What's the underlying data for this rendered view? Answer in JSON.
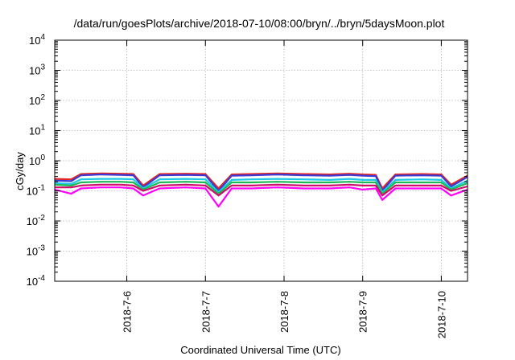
{
  "chart_data": {
    "type": "line",
    "title": "/data/run/goesPlots/archive/2018-07-10/08:00/bryn/../bryn/5daysMoon.plot",
    "xlabel": "Coordinated Universal Time (UTC)",
    "ylabel": "cGy/day",
    "yscale": "log",
    "ylim": [
      0.0001,
      10000
    ],
    "xlim": [
      "2018-07-05 02:00",
      "2018-07-10 08:00"
    ],
    "grid": true,
    "legend": "none",
    "y_ticks": [
      {
        "value": 0.0001,
        "mantissa": "10",
        "exp": "-4"
      },
      {
        "value": 0.001,
        "mantissa": "10",
        "exp": "-3"
      },
      {
        "value": 0.01,
        "mantissa": "10",
        "exp": "-2"
      },
      {
        "value": 0.1,
        "mantissa": "10",
        "exp": "-1"
      },
      {
        "value": 1,
        "mantissa": "10",
        "exp": "0"
      },
      {
        "value": 10,
        "mantissa": "10",
        "exp": "1"
      },
      {
        "value": 100,
        "mantissa": "10",
        "exp": "2"
      },
      {
        "value": 1000,
        "mantissa": "10",
        "exp": "3"
      },
      {
        "value": 10000,
        "mantissa": "10",
        "exp": "4"
      }
    ],
    "x_ticks": [
      {
        "value": "2018-07-06",
        "label": "2018-7-6"
      },
      {
        "value": "2018-07-07",
        "label": "2018-7-7"
      },
      {
        "value": "2018-07-08",
        "label": "2018-7-8"
      },
      {
        "value": "2018-07-09",
        "label": "2018-7-9"
      },
      {
        "value": "2018-07-10",
        "label": "2018-7-10"
      }
    ],
    "x": [
      "2018-07-05 02:00",
      "2018-07-05 07:00",
      "2018-07-05 10:00",
      "2018-07-05 16:00",
      "2018-07-05 22:00",
      "2018-07-06 02:00",
      "2018-07-06 05:00",
      "2018-07-06 10:00",
      "2018-07-06 18:00",
      "2018-07-07 00:00",
      "2018-07-07 04:00",
      "2018-07-07 08:00",
      "2018-07-07 14:00",
      "2018-07-07 22:00",
      "2018-07-08 06:00",
      "2018-07-08 14:00",
      "2018-07-08 20:00",
      "2018-07-09 00:00",
      "2018-07-09 04:00",
      "2018-07-09 06:00",
      "2018-07-09 10:00",
      "2018-07-09 18:00",
      "2018-07-10 00:00",
      "2018-07-10 03:00",
      "2018-07-10 08:00"
    ],
    "series": [
      {
        "color": "#e8231f",
        "values": [
          0.25,
          0.24,
          0.36,
          0.38,
          0.37,
          0.36,
          0.15,
          0.36,
          0.37,
          0.36,
          0.12,
          0.35,
          0.36,
          0.38,
          0.36,
          0.35,
          0.37,
          0.35,
          0.34,
          0.12,
          0.35,
          0.36,
          0.35,
          0.16,
          0.32
        ]
      },
      {
        "color": "#3a3ad6",
        "values": [
          0.22,
          0.21,
          0.33,
          0.35,
          0.34,
          0.33,
          0.13,
          0.33,
          0.34,
          0.33,
          0.1,
          0.32,
          0.33,
          0.35,
          0.33,
          0.32,
          0.34,
          0.32,
          0.31,
          0.1,
          0.32,
          0.33,
          0.32,
          0.14,
          0.29
        ]
      },
      {
        "color": "#1ec8e6",
        "values": [
          0.18,
          0.17,
          0.24,
          0.25,
          0.25,
          0.24,
          0.12,
          0.24,
          0.25,
          0.24,
          0.09,
          0.23,
          0.24,
          0.25,
          0.24,
          0.23,
          0.25,
          0.23,
          0.23,
          0.09,
          0.23,
          0.24,
          0.23,
          0.12,
          0.22
        ]
      },
      {
        "color": "#1db954",
        "values": [
          0.16,
          0.15,
          0.19,
          0.2,
          0.2,
          0.19,
          0.11,
          0.19,
          0.2,
          0.19,
          0.08,
          0.19,
          0.19,
          0.2,
          0.19,
          0.19,
          0.2,
          0.19,
          0.19,
          0.08,
          0.19,
          0.19,
          0.19,
          0.11,
          0.18
        ]
      },
      {
        "color": "#d10b6a",
        "values": [
          0.13,
          0.13,
          0.15,
          0.16,
          0.16,
          0.15,
          0.1,
          0.15,
          0.16,
          0.15,
          0.07,
          0.15,
          0.15,
          0.16,
          0.15,
          0.15,
          0.16,
          0.15,
          0.15,
          0.07,
          0.15,
          0.15,
          0.15,
          0.1,
          0.14
        ]
      },
      {
        "color": "#ff00ff",
        "values": [
          0.11,
          0.08,
          0.12,
          0.13,
          0.13,
          0.12,
          0.07,
          0.12,
          0.13,
          0.12,
          0.03,
          0.12,
          0.12,
          0.13,
          0.12,
          0.12,
          0.13,
          0.11,
          0.12,
          0.05,
          0.12,
          0.12,
          0.12,
          0.07,
          0.11
        ]
      }
    ]
  }
}
